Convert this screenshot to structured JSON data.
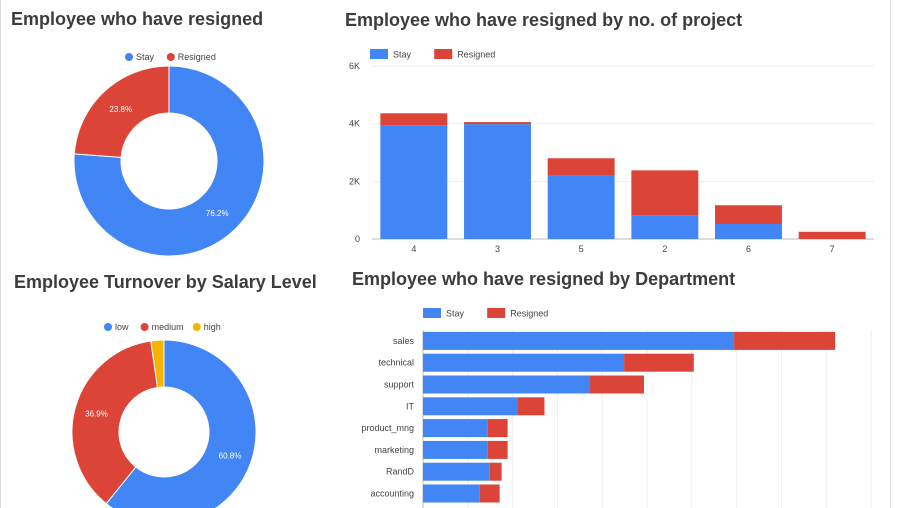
{
  "page": {
    "background": "#ffffff",
    "divider_color": "#dddddd"
  },
  "titles": {
    "chart1": "Employee who have resigned",
    "chart2": "Employee who have resigned by no. of project",
    "chart3": "Employee Turnover by Salary Level",
    "chart4": "Employee who have resigned by Department"
  },
  "colors": {
    "blue": "#4285f4",
    "red": "#db4437",
    "yellow": "#f4b400"
  },
  "chart_data": [
    {
      "type": "pie",
      "variant": "donut",
      "title": "Employee who have resigned",
      "legend_position": "top",
      "slices": [
        {
          "label": "Stay",
          "value": 76.2,
          "label_text": "76.2%"
        },
        {
          "label": "Resigned",
          "value": 23.8,
          "label_text": "23.8%"
        }
      ]
    },
    {
      "type": "bar",
      "orientation": "vertical",
      "stacked": true,
      "title": "Employee who have resigned by no. of project",
      "legend_position": "top-left",
      "categories": [
        "4",
        "3",
        "5",
        "2",
        "6",
        "7"
      ],
      "series": [
        {
          "name": "Stay",
          "values": [
            3950,
            3985,
            2190,
            820,
            520,
            0
          ]
        },
        {
          "name": "Resigned",
          "values": [
            410,
            70,
            610,
            1560,
            650,
            250
          ]
        }
      ],
      "ylim": [
        0,
        6000
      ],
      "yticks": [
        0,
        2000,
        4000,
        6000
      ],
      "ytick_labels": [
        "0",
        "2K",
        "4K",
        "6K"
      ],
      "grid": true
    },
    {
      "type": "pie",
      "variant": "donut",
      "title": "Employee Turnover by Salary Level",
      "legend_position": "top",
      "slices": [
        {
          "label": "low",
          "value": 60.8,
          "label_text": "60.8%"
        },
        {
          "label": "medium",
          "value": 36.9,
          "label_text": "36.9%"
        },
        {
          "label": "high",
          "value": 2.3,
          "label_text": ""
        }
      ]
    },
    {
      "type": "bar",
      "orientation": "horizontal",
      "stacked": true,
      "title": "Employee who have resigned by Department",
      "legend_position": "top-left",
      "categories": [
        "sales",
        "technical",
        "support",
        "IT",
        "product_mng",
        "marketing",
        "RandD",
        "accounting"
      ],
      "series": [
        {
          "name": "Stay",
          "values": [
            3125,
            2020,
            1670,
            950,
            650,
            650,
            670,
            570
          ]
        },
        {
          "name": "Resigned",
          "values": [
            1015,
            700,
            550,
            270,
            200,
            200,
            120,
            200
          ]
        }
      ],
      "xlim": [
        0,
        4500
      ],
      "grid": true
    }
  ]
}
